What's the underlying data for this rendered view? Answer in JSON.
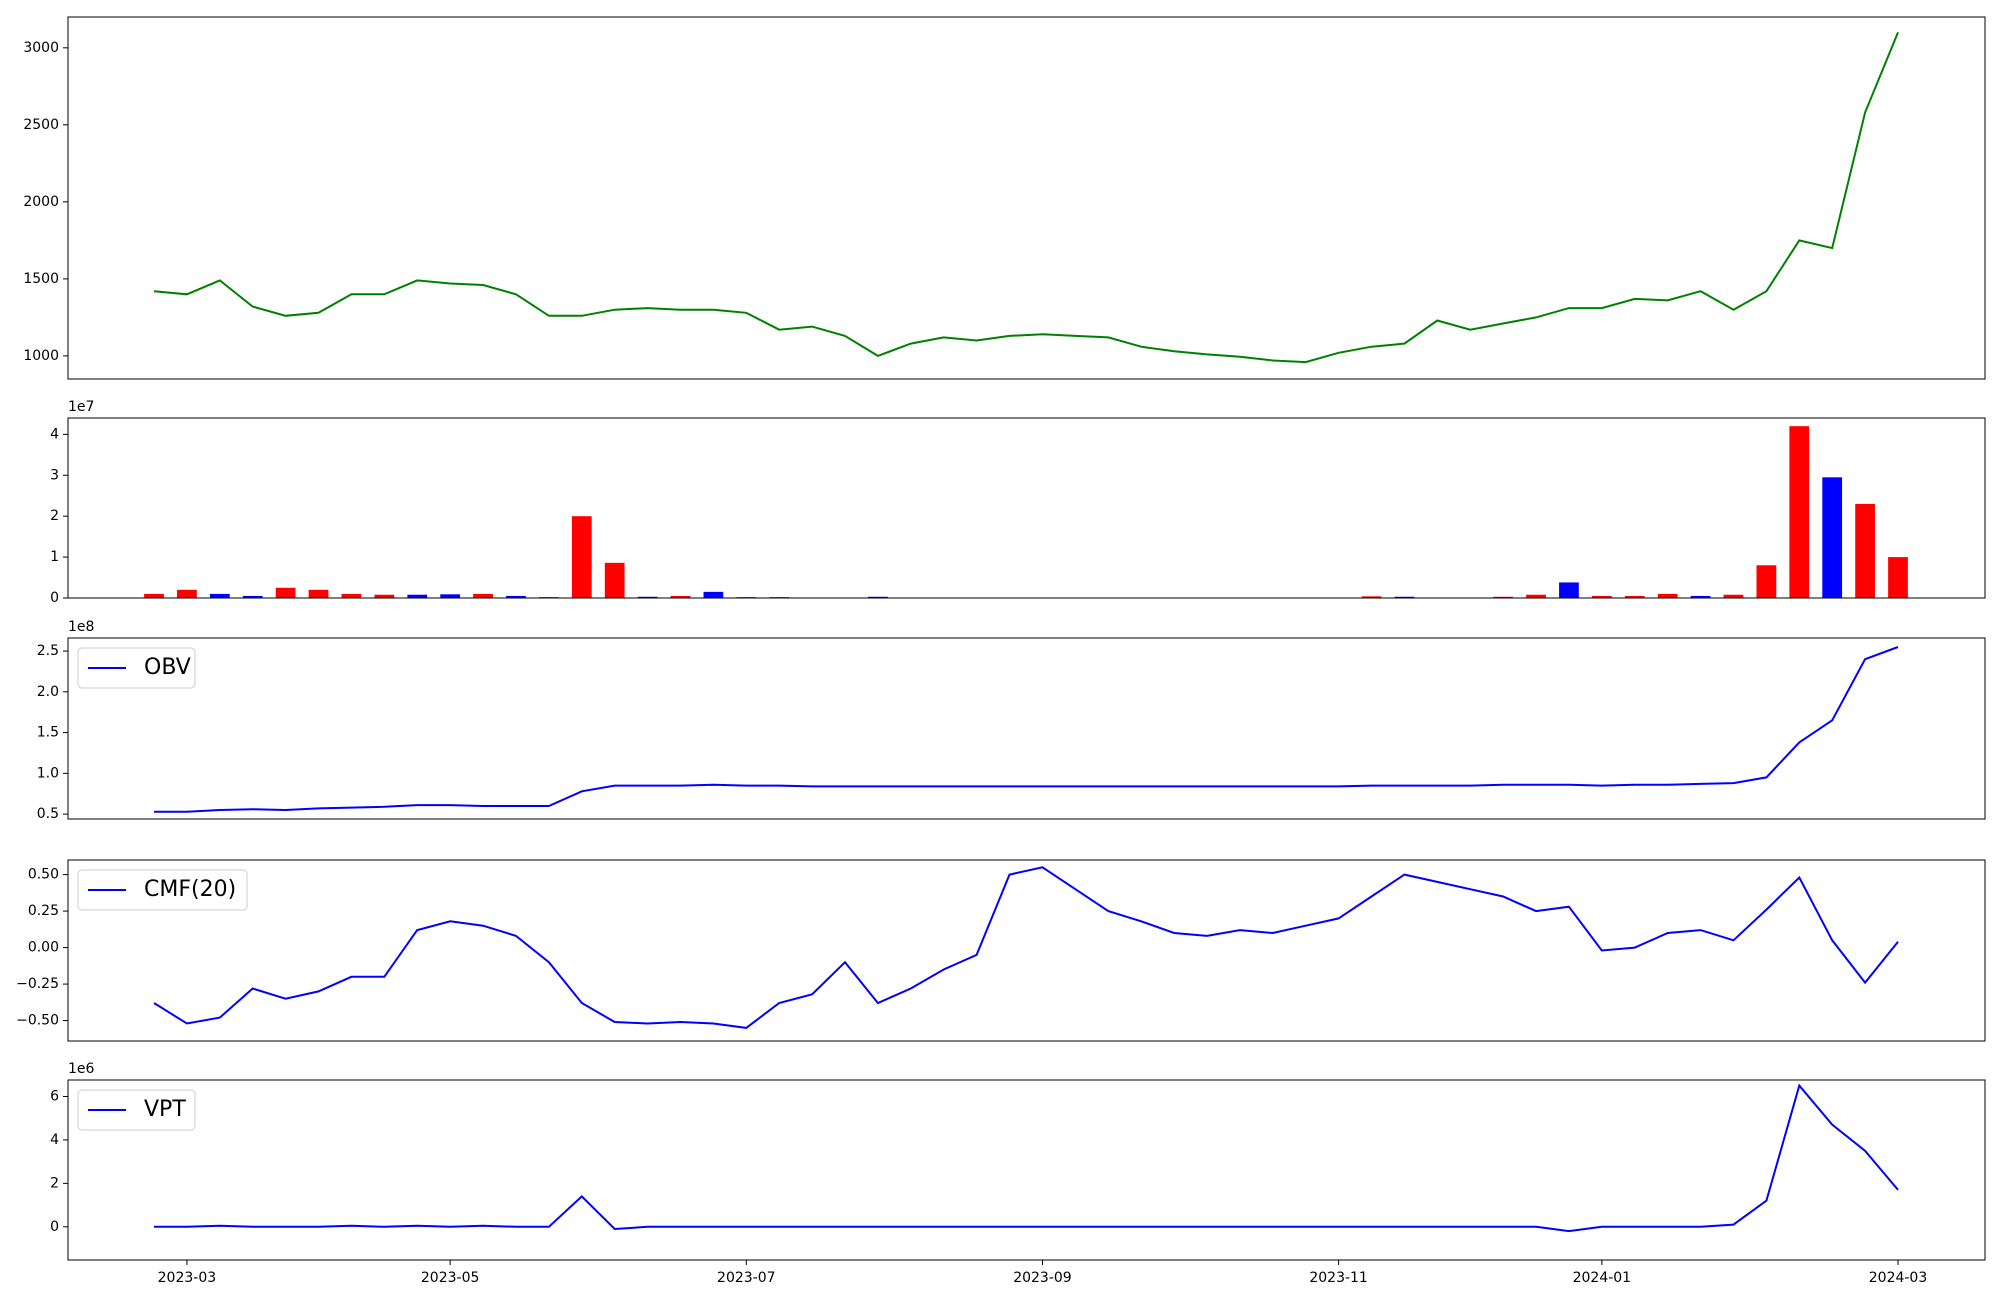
{
  "chart_data": [
    {
      "type": "line",
      "color": "#008000",
      "values": [
        1420,
        1400,
        1490,
        1320,
        1260,
        1280,
        1400,
        1400,
        1490,
        1470,
        1460,
        1400,
        1260,
        1260,
        1300,
        1310,
        1300,
        1300,
        1280,
        1170,
        1190,
        1130,
        1000,
        1080,
        1120,
        1100,
        1130,
        1140,
        1130,
        1120,
        1060,
        1030,
        1010,
        995,
        970,
        960,
        1020,
        1060,
        1080,
        1230,
        1170,
        1210,
        1250,
        1310,
        1310,
        1370,
        1360,
        1420,
        1300,
        1420,
        1750,
        1700,
        2580,
        3100
      ],
      "ylim": [
        850,
        3200
      ],
      "yticks": [
        1000,
        1500,
        2000,
        2500,
        3000
      ]
    },
    {
      "type": "bar",
      "offset_text": "1e7",
      "values": [
        1000000,
        2000000,
        1000000,
        500000,
        2500000,
        2000000,
        1000000,
        800000,
        800000,
        900000,
        1000000,
        500000,
        200000,
        20000000,
        8600000,
        300000,
        500000,
        1500000,
        200000,
        200000,
        100000,
        100000,
        300000,
        100000,
        50000,
        50000,
        50000,
        50000,
        50000,
        50000,
        50000,
        50000,
        50000,
        50000,
        50000,
        50000,
        50000,
        400000,
        300000,
        100000,
        100000,
        300000,
        800000,
        3800000,
        500000,
        500000,
        1000000,
        500000,
        800000,
        8000000,
        42000000,
        29500000,
        23000000,
        10000000
      ],
      "colors": [
        "#ff0000",
        "#ff0000",
        "#0000ff",
        "#0000ff",
        "#ff0000",
        "#ff0000",
        "#ff0000",
        "#ff0000",
        "#0000ff",
        "#0000ff",
        "#ff0000",
        "#0000ff",
        "#0000ff",
        "#ff0000",
        "#ff0000",
        "#0000ff",
        "#ff0000",
        "#0000ff",
        "#0000ff",
        "#0000ff",
        "#0000ff",
        "#0000ff",
        "#0000ff",
        "#0000ff",
        "#0000ff",
        "#0000ff",
        "#0000ff",
        "#0000ff",
        "#0000ff",
        "#0000ff",
        "#0000ff",
        "#0000ff",
        "#0000ff",
        "#0000ff",
        "#0000ff",
        "#0000ff",
        "#0000ff",
        "#ff0000",
        "#0000ff",
        "#0000ff",
        "#0000ff",
        "#ff0000",
        "#ff0000",
        "#0000ff",
        "#ff0000",
        "#ff0000",
        "#ff0000",
        "#0000ff",
        "#ff0000",
        "#ff0000",
        "#ff0000",
        "#0000ff",
        "#ff0000",
        "#ff0000"
      ],
      "ylim": [
        0,
        44000000
      ],
      "yticks": [
        0,
        {
          "value": 10000000,
          "label": "1"
        },
        {
          "value": 20000000,
          "label": "2"
        },
        {
          "value": 30000000,
          "label": "3"
        },
        {
          "value": 40000000,
          "label": "4"
        }
      ]
    },
    {
      "type": "line",
      "offset_text": "1e8",
      "legend": "upper left",
      "series": [
        {
          "name": "OBV",
          "color": "#0000ff",
          "values": [
            53000000,
            53000000,
            55000000,
            56000000,
            55000000,
            57000000,
            58000000,
            59000000,
            61000000,
            61000000,
            60000000,
            60000000,
            60000000,
            78000000,
            85000000,
            85000000,
            85000000,
            86000000,
            85000000,
            85000000,
            84000000,
            84000000,
            84000000,
            84000000,
            84000000,
            84000000,
            84000000,
            84000000,
            84000000,
            84000000,
            84000000,
            84000000,
            84000000,
            84000000,
            84000000,
            84000000,
            84000000,
            85000000,
            85000000,
            85000000,
            85000000,
            86000000,
            86000000,
            86000000,
            85000000,
            86000000,
            86000000,
            87000000,
            88000000,
            95000000,
            138000000,
            165000000,
            240000000,
            255000000
          ]
        }
      ],
      "ylim": [
        44000000,
        266000000
      ],
      "yticks": [
        {
          "value": 50000000,
          "label": "0.5"
        },
        {
          "value": 100000000,
          "label": "1.0"
        },
        {
          "value": 150000000,
          "label": "1.5"
        },
        {
          "value": 200000000,
          "label": "2.0"
        },
        {
          "value": 250000000,
          "label": "2.5"
        }
      ]
    },
    {
      "type": "line",
      "legend": "upper left",
      "series": [
        {
          "name": "CMF(20)",
          "color": "#0000ff",
          "values": [
            -0.38,
            -0.52,
            -0.48,
            -0.28,
            -0.35,
            -0.3,
            -0.2,
            -0.2,
            0.12,
            0.18,
            0.15,
            0.08,
            -0.1,
            -0.38,
            -0.51,
            -0.52,
            -0.51,
            -0.52,
            -0.55,
            -0.38,
            -0.32,
            -0.1,
            -0.38,
            -0.28,
            -0.15,
            -0.05,
            0.5,
            0.55,
            0.4,
            0.25,
            0.18,
            0.1,
            0.08,
            0.12,
            0.1,
            0.15,
            0.2,
            0.35,
            0.5,
            0.45,
            0.4,
            0.35,
            0.25,
            0.28,
            -0.02,
            0.0,
            0.1,
            0.12,
            0.05,
            0.26,
            0.48,
            0.05,
            -0.24,
            0.04
          ]
        }
      ],
      "ylim": [
        -0.64,
        0.6
      ],
      "yticks": [
        {
          "value": -0.5,
          "label": "−0.50"
        },
        {
          "value": -0.25,
          "label": "−0.25"
        },
        {
          "value": 0,
          "label": "0.00"
        },
        {
          "value": 0.25,
          "label": "0.25"
        },
        {
          "value": 0.5,
          "label": "0.50"
        }
      ]
    },
    {
      "type": "line",
      "offset_text": "1e6",
      "legend": "upper left",
      "categories": [
        null,
        "2023-03",
        null,
        null,
        null,
        null,
        null,
        null,
        null,
        "2023-05",
        null,
        null,
        null,
        null,
        null,
        null,
        null,
        null,
        "2023-07",
        null,
        null,
        null,
        null,
        null,
        null,
        null,
        null,
        "2023-09",
        null,
        null,
        null,
        null,
        null,
        null,
        null,
        null,
        "2023-11",
        null,
        null,
        null,
        null,
        null,
        null,
        null,
        "2024-01",
        null,
        null,
        null,
        null,
        null,
        null,
        null,
        null,
        "2024-03"
      ],
      "series": [
        {
          "name": "VPT",
          "color": "#0000ff",
          "values": [
            0,
            0,
            50000,
            0,
            0,
            0,
            50000,
            0,
            50000,
            0,
            50000,
            0,
            0,
            1400000,
            -100000,
            0,
            0,
            0,
            0,
            0,
            0,
            0,
            0,
            0,
            0,
            0,
            0,
            0,
            0,
            0,
            0,
            0,
            0,
            0,
            0,
            0,
            0,
            0,
            0,
            0,
            0,
            0,
            0,
            -200000,
            0,
            0,
            0,
            0,
            100000,
            1200000,
            6500000,
            4700000,
            3500000,
            1700000
          ]
        }
      ],
      "ylim": [
        -1530000,
        6760000
      ],
      "yticks": [
        0,
        {
          "value": 2000000,
          "label": "2"
        },
        {
          "value": 4000000,
          "label": "4"
        },
        {
          "value": 6000000,
          "label": "6"
        }
      ]
    }
  ]
}
